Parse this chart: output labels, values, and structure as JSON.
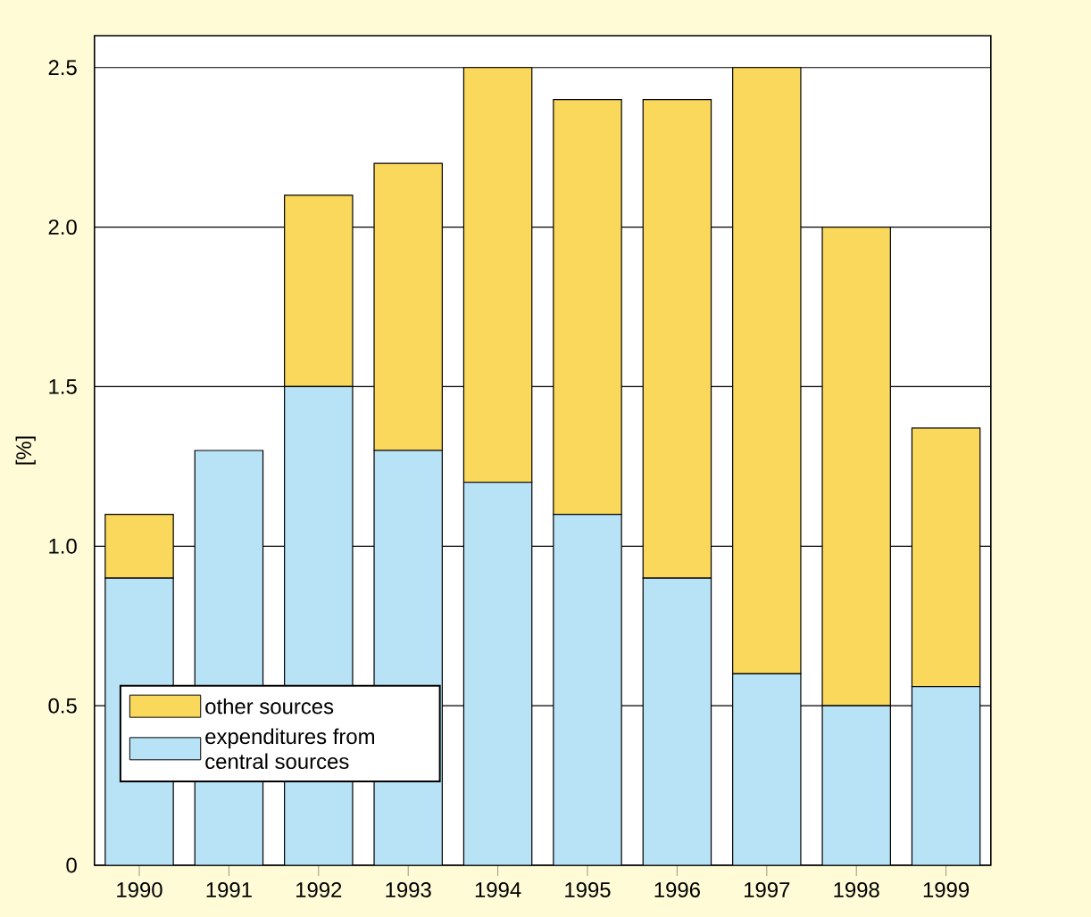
{
  "chart_data": {
    "type": "bar",
    "stacked": true,
    "ylabel": "[%]",
    "categories": [
      "1990",
      "1991",
      "1992",
      "1993",
      "1994",
      "1995",
      "1996",
      "1997",
      "1998",
      "1999"
    ],
    "series": [
      {
        "name": "expenditures from central sources",
        "color": "#b8e2f6",
        "values": [
          0.9,
          1.3,
          1.5,
          1.3,
          1.2,
          1.1,
          0.9,
          0.6,
          0.5,
          0.56
        ]
      },
      {
        "name": "other sources",
        "color": "#fad85c",
        "values": [
          0.2,
          0,
          0.6,
          0.9,
          1.3,
          1.3,
          1.5,
          1.9,
          1.5,
          0.81
        ]
      }
    ],
    "ylim": [
      0,
      2.6
    ],
    "yticks": [
      0,
      0.5,
      {
        "value": 1.0,
        "label": "1.0"
      },
      1.5,
      {
        "value": 2.0,
        "label": "2.0"
      },
      2.5
    ],
    "grid": "y",
    "legend": "bottom left"
  }
}
